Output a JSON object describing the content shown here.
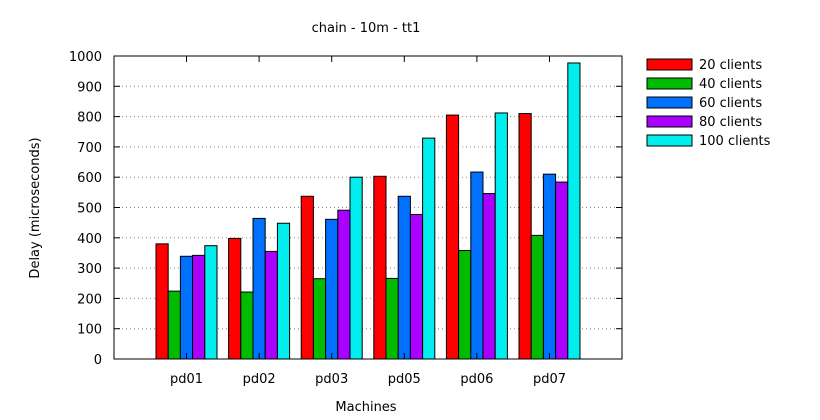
{
  "chart_data": {
    "type": "bar",
    "title": "chain - 10m - tt1",
    "xlabel": "Machines",
    "ylabel": "Delay (microseconds)",
    "ylim": [
      0,
      1000
    ],
    "yticks": [
      0,
      100,
      200,
      300,
      400,
      500,
      600,
      700,
      800,
      900,
      1000
    ],
    "grid": true,
    "legend_position": "right",
    "categories": [
      "pd01",
      "pd02",
      "pd03",
      "pd05",
      "pd06",
      "pd07"
    ],
    "series": [
      {
        "name": "20 clients",
        "color": "#ff0000",
        "values": [
          380,
          398,
          537,
          603,
          805,
          810
        ]
      },
      {
        "name": "40 clients",
        "color": "#00bb00",
        "values": [
          224,
          221,
          265,
          266,
          358,
          408
        ]
      },
      {
        "name": "60 clients",
        "color": "#0070ff",
        "values": [
          339,
          464,
          461,
          537,
          617,
          610
        ]
      },
      {
        "name": "80 clients",
        "color": "#aa00ff",
        "values": [
          342,
          355,
          491,
          477,
          546,
          584
        ]
      },
      {
        "name": "100 clients",
        "color": "#00eeee",
        "values": [
          374,
          448,
          600,
          729,
          812,
          977
        ]
      }
    ]
  }
}
